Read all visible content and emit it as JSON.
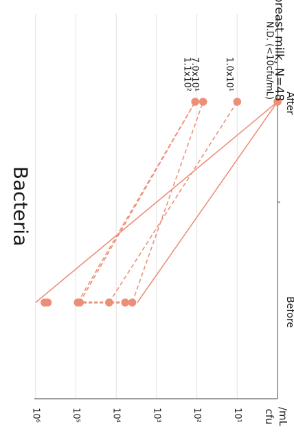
{
  "chart_data": {
    "type": "line",
    "orientation": "rotated-90-clockwise",
    "title": "Bacteria",
    "subtitle": "breast milk, N=48",
    "xlabel": "",
    "ylabel": "cfu\n/mL",
    "categories": [
      "Before",
      "After"
    ],
    "y_scale": "log10",
    "ylim": [
      1,
      1000000
    ],
    "y_ticks": [
      {
        "exp": 1,
        "label": "10¹"
      },
      {
        "exp": 2,
        "label": "10²"
      },
      {
        "exp": 3,
        "label": "10³"
      },
      {
        "exp": 4,
        "label": "10⁴"
      },
      {
        "exp": 5,
        "label": "10⁵"
      },
      {
        "exp": 6,
        "label": "10⁶"
      }
    ],
    "y_bottom_label": "cfu\n/mL",
    "grid": "horizontal",
    "color": "#ec8f78",
    "nd_label": "N.D. (<10cfu/mL)",
    "series": [
      {
        "values": [
          1000000,
          1
        ],
        "style": "solid"
      },
      {
        "values": [
          3000,
          1
        ],
        "style": "solid"
      },
      {
        "values": [
          90000,
          110
        ],
        "style": "dashed"
      },
      {
        "values": [
          80000,
          110
        ],
        "style": "dashed"
      },
      {
        "values": [
          4000,
          70
        ],
        "style": "dashed"
      },
      {
        "values": [
          15000,
          10
        ],
        "style": "dashed"
      }
    ],
    "before_points": [
      600000,
      500000,
      90000,
      80000,
      15000,
      6000,
      4000
    ],
    "annotations": [
      {
        "text": "1.1x10²",
        "value": 110
      },
      {
        "text": "7.0x10¹",
        "value": 70
      },
      {
        "text": "1.0x10¹",
        "value": 10
      }
    ]
  }
}
